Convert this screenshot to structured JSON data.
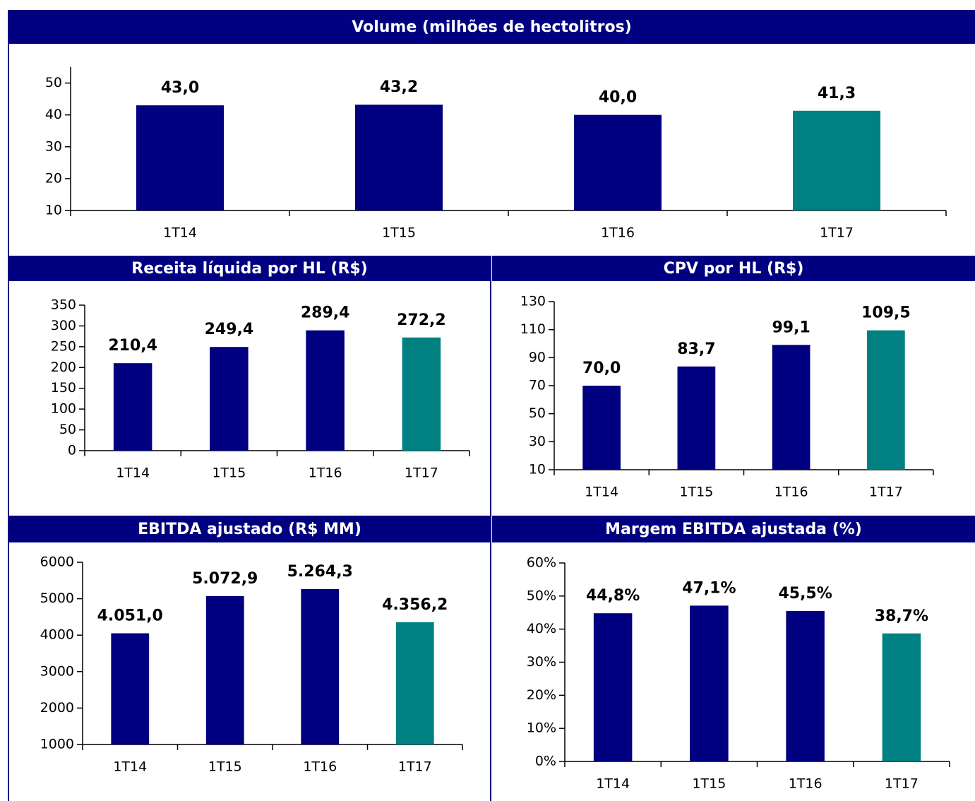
{
  "chart_data": [
    {
      "type": "bar",
      "title": "Volume (milhões de hectolitros)",
      "categories": [
        "1T14",
        "1T15",
        "1T16",
        "1T17"
      ],
      "values": [
        43.0,
        43.2,
        40.0,
        41.3
      ],
      "value_labels": [
        "43,0",
        "43,2",
        "40,0",
        "41,3"
      ],
      "colors": [
        "#000080",
        "#000080",
        "#000080",
        "#008080"
      ],
      "ylim": [
        10,
        55
      ],
      "yticks": [
        10,
        20,
        30,
        40,
        50
      ]
    },
    {
      "type": "bar",
      "title": "Receita líquida por HL (R$)",
      "categories": [
        "1T14",
        "1T15",
        "1T16",
        "1T17"
      ],
      "values": [
        210.4,
        249.4,
        289.4,
        272.2
      ],
      "value_labels": [
        "210,4",
        "249,4",
        "289,4",
        "272,2"
      ],
      "colors": [
        "#000080",
        "#000080",
        "#000080",
        "#008080"
      ],
      "ylim": [
        0,
        350
      ],
      "yticks": [
        0,
        50,
        100,
        150,
        200,
        250,
        300,
        350
      ]
    },
    {
      "type": "bar",
      "title": "CPV por HL (R$)",
      "categories": [
        "1T14",
        "1T15",
        "1T16",
        "1T17"
      ],
      "values": [
        70.0,
        83.7,
        99.1,
        109.5
      ],
      "value_labels": [
        "70,0",
        "83,7",
        "99,1",
        "109,5"
      ],
      "colors": [
        "#000080",
        "#000080",
        "#000080",
        "#008080"
      ],
      "ylim": [
        10,
        130
      ],
      "yticks": [
        10,
        30,
        50,
        70,
        90,
        110,
        130
      ]
    },
    {
      "type": "bar",
      "title": "EBITDA ajustado (R$ MM)",
      "categories": [
        "1T14",
        "1T15",
        "1T16",
        "1T17"
      ],
      "values": [
        4051.0,
        5072.9,
        5264.3,
        4356.2
      ],
      "value_labels": [
        "4.051,0",
        "5.072,9",
        "5.264,3",
        "4.356,2"
      ],
      "colors": [
        "#000080",
        "#000080",
        "#000080",
        "#008080"
      ],
      "ylim": [
        1000,
        6000
      ],
      "yticks": [
        1000,
        2000,
        3000,
        4000,
        5000,
        6000
      ]
    },
    {
      "type": "bar",
      "title": "Margem EBITDA ajustada (%)",
      "categories": [
        "1T14",
        "1T15",
        "1T16",
        "1T17"
      ],
      "values": [
        44.8,
        47.1,
        45.5,
        38.7
      ],
      "value_labels": [
        "44,8%",
        "47,1%",
        "45,5%",
        "38,7%"
      ],
      "colors": [
        "#000080",
        "#000080",
        "#000080",
        "#008080"
      ],
      "ylim": [
        0,
        60
      ],
      "yticks": [
        {
          "value": 0,
          "label": "0%"
        },
        {
          "value": 10,
          "label": "10%"
        },
        {
          "value": 20,
          "label": "20%"
        },
        {
          "value": 30,
          "label": "30%"
        },
        {
          "value": 40,
          "label": "40%"
        },
        {
          "value": 50,
          "label": "50%"
        },
        {
          "value": 60,
          "label": "60%"
        }
      ]
    }
  ]
}
